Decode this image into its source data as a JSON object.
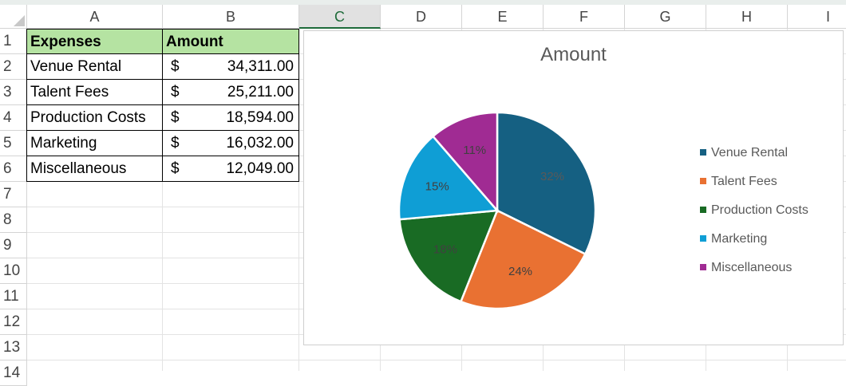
{
  "columns": [
    "A",
    "B",
    "C",
    "D",
    "E",
    "F",
    "G",
    "H",
    "I"
  ],
  "rows": [
    "1",
    "2",
    "3",
    "4",
    "5",
    "6",
    "7",
    "8",
    "9",
    "10",
    "11",
    "12",
    "13",
    "14"
  ],
  "table": {
    "header": {
      "col_a": "Expenses",
      "col_b": "Amount"
    },
    "rows": [
      {
        "label": "Venue Rental",
        "currency": "$",
        "amount": "34,311.00"
      },
      {
        "label": "Talent Fees",
        "currency": "$",
        "amount": "25,211.00"
      },
      {
        "label": "Production Costs",
        "currency": "$",
        "amount": "18,594.00"
      },
      {
        "label": "Marketing",
        "currency": "$",
        "amount": "16,032.00"
      },
      {
        "label": "Miscellaneous",
        "currency": "$",
        "amount": "12,049.00"
      }
    ]
  },
  "chart_data": {
    "type": "pie",
    "title": "Amount",
    "categories": [
      "Venue Rental",
      "Talent Fees",
      "Production Costs",
      "Marketing",
      "Miscellaneous"
    ],
    "values": [
      34311,
      25211,
      18594,
      16032,
      12049
    ],
    "data_labels": [
      "32%",
      "24%",
      "18%",
      "15%",
      "11%"
    ],
    "colors": [
      "#156082",
      "#e97132",
      "#196b24",
      "#0f9ed5",
      "#a02b93"
    ],
    "label_colors": [
      "#595959",
      "#404040",
      "#404040",
      "#404040",
      "#404040"
    ],
    "legend_position": "right"
  }
}
